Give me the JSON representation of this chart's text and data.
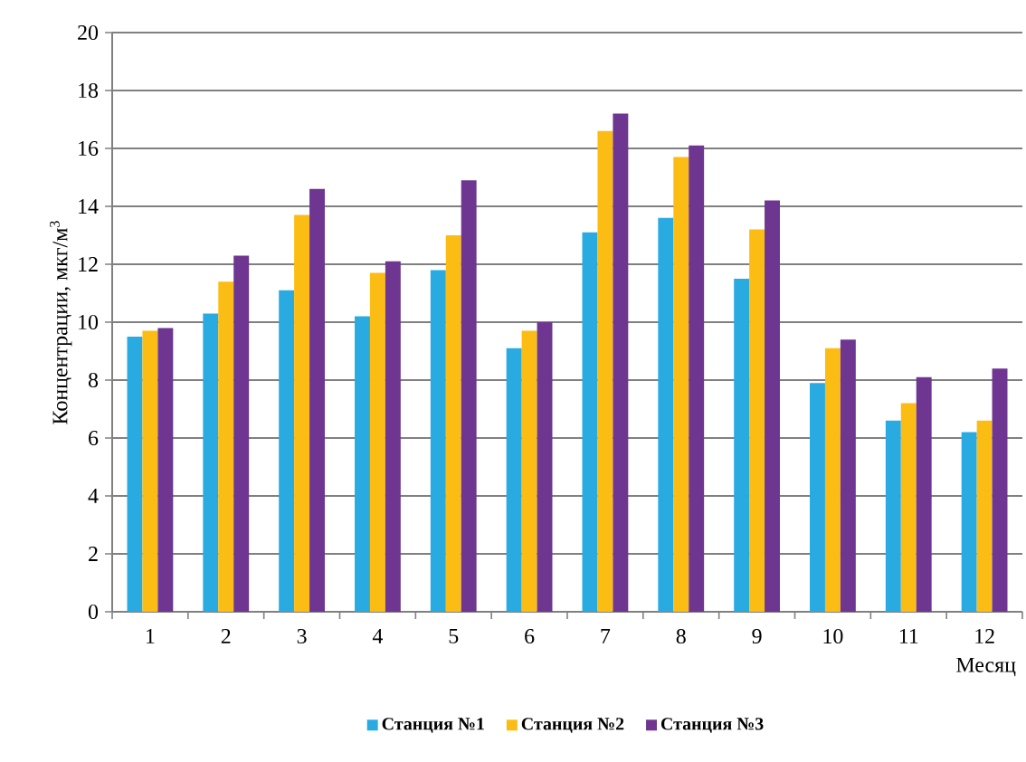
{
  "chart_data": {
    "type": "bar",
    "xlabel": "Месяц",
    "ylabel": "Концентрации, мкг/м$^{3}$",
    "categories": [
      "1",
      "2",
      "3",
      "4",
      "5",
      "6",
      "7",
      "8",
      "9",
      "10",
      "11",
      "12"
    ],
    "series": [
      {
        "name": "Станция №1",
        "color": "#29abe2",
        "values": [
          9.5,
          10.3,
          11.1,
          10.2,
          11.8,
          9.1,
          13.1,
          13.6,
          11.5,
          7.9,
          6.6,
          6.2
        ]
      },
      {
        "name": "Станция №2",
        "color": "#fbbc14",
        "values": [
          9.7,
          11.4,
          13.7,
          11.7,
          13.0,
          9.7,
          16.6,
          15.7,
          13.2,
          9.1,
          7.2,
          6.6
        ]
      },
      {
        "name": "Станция №3",
        "color": "#6e3690",
        "values": [
          9.8,
          12.3,
          14.6,
          12.1,
          14.9,
          10.0,
          17.2,
          16.1,
          14.2,
          9.4,
          8.1,
          8.4
        ]
      }
    ],
    "ylim": [
      0,
      20
    ],
    "yticks": [
      0,
      2,
      4,
      6,
      8,
      10,
      12,
      14,
      16,
      18,
      20
    ],
    "grid": "y",
    "legend": "bottom"
  }
}
